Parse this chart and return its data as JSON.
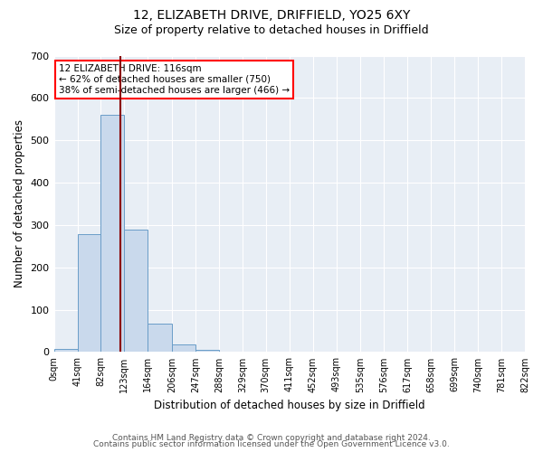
{
  "title1": "12, ELIZABETH DRIVE, DRIFFIELD, YO25 6XY",
  "title2": "Size of property relative to detached houses in Driffield",
  "xlabel": "Distribution of detached houses by size in Driffield",
  "ylabel": "Number of detached properties",
  "bin_edges": [
    0,
    41,
    82,
    123,
    164,
    206,
    247,
    288,
    329,
    370,
    411,
    452,
    493,
    535,
    576,
    617,
    658,
    699,
    740,
    781,
    822
  ],
  "bin_labels": [
    "0sqm",
    "41sqm",
    "82sqm",
    "123sqm",
    "164sqm",
    "206sqm",
    "247sqm",
    "288sqm",
    "329sqm",
    "370sqm",
    "411sqm",
    "452sqm",
    "493sqm",
    "535sqm",
    "576sqm",
    "617sqm",
    "658sqm",
    "699sqm",
    "740sqm",
    "781sqm",
    "822sqm"
  ],
  "bar_heights": [
    7,
    278,
    560,
    290,
    68,
    17,
    6,
    0,
    0,
    0,
    0,
    0,
    0,
    0,
    0,
    0,
    0,
    0,
    0,
    0
  ],
  "bar_color": "#c9d9ec",
  "bar_edge_color": "#6a9dc8",
  "property_value": 116,
  "vline_color": "#8b0000",
  "annotation_line1": "12 ELIZABETH DRIVE: 116sqm",
  "annotation_line2": "← 62% of detached houses are smaller (750)",
  "annotation_line3": "38% of semi-detached houses are larger (466) →",
  "annotation_box_color": "white",
  "annotation_box_edge_color": "red",
  "ylim": [
    0,
    700
  ],
  "yticks": [
    0,
    100,
    200,
    300,
    400,
    500,
    600,
    700
  ],
  "background_color": "#e8eef5",
  "grid_color": "white",
  "footer1": "Contains HM Land Registry data © Crown copyright and database right 2024.",
  "footer2": "Contains public sector information licensed under the Open Government Licence v3.0."
}
